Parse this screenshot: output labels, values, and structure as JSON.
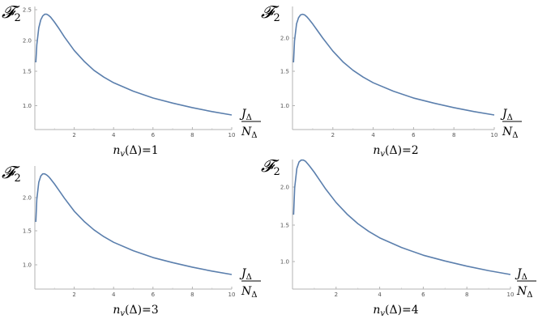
{
  "chart_data": [
    {
      "type": "line",
      "ylabel": "𝓕",
      "ylabel_sub": "2",
      "xlabel_num": "J",
      "xlabel_num_sub": "Δ",
      "xlabel_den": "N",
      "xlabel_den_sub": "Δ",
      "caption": "n",
      "caption_sub": "v",
      "caption_rest": "(Δ)=1",
      "xlim": [
        0,
        10
      ],
      "ylim": [
        0.6,
        2.5
      ],
      "xticks": [
        "2",
        "4",
        "6",
        "8",
        "10"
      ],
      "yticks": [
        "1.0",
        "1.5",
        "2.0",
        "2.5"
      ],
      "series": [
        {
          "x": [
            0.05,
            0.1,
            0.2,
            0.3,
            0.4,
            0.5,
            0.6,
            0.7,
            0.8,
            1.0,
            1.2,
            1.5,
            2.0,
            2.5,
            3.0,
            3.5,
            4.0,
            5.0,
            6.0,
            7.0,
            8.0,
            9.0,
            10.0
          ],
          "y": [
            1.57,
            1.88,
            2.18,
            2.32,
            2.39,
            2.42,
            2.42,
            2.4,
            2.37,
            2.28,
            2.18,
            2.02,
            1.78,
            1.59,
            1.43,
            1.31,
            1.21,
            1.06,
            0.94,
            0.85,
            0.77,
            0.7,
            0.64
          ],
          "color": "#5b7fad"
        }
      ]
    },
    {
      "type": "line",
      "ylabel": "𝓕",
      "ylabel_sub": "2",
      "xlabel_num": "J",
      "xlabel_num_sub": "Δ",
      "xlabel_den": "N",
      "xlabel_den_sub": "Δ",
      "caption": "n",
      "caption_sub": "v",
      "caption_rest": "(Δ)=2",
      "xlim": [
        0,
        10
      ],
      "ylim": [
        0.6,
        2.5
      ],
      "xticks": [
        "2",
        "4",
        "6",
        "8",
        "10"
      ],
      "yticks": [
        "1.0",
        "1.5",
        "2.0"
      ],
      "series": [
        {
          "x": [
            0.05,
            0.1,
            0.2,
            0.3,
            0.4,
            0.5,
            0.6,
            0.7,
            0.8,
            1.0,
            1.2,
            1.5,
            2.0,
            2.5,
            3.0,
            3.5,
            4.0,
            5.0,
            6.0,
            7.0,
            8.0,
            9.0,
            10.0
          ],
          "y": [
            1.57,
            1.95,
            2.25,
            2.36,
            2.41,
            2.42,
            2.41,
            2.38,
            2.34,
            2.25,
            2.15,
            2.0,
            1.77,
            1.58,
            1.43,
            1.31,
            1.21,
            1.06,
            0.94,
            0.85,
            0.77,
            0.7,
            0.64
          ],
          "color": "#5b7fad"
        }
      ]
    },
    {
      "type": "line",
      "ylabel": "𝓕",
      "ylabel_sub": "2",
      "xlabel_num": "J",
      "xlabel_num_sub": "Δ",
      "xlabel_den": "N",
      "xlabel_den_sub": "Δ",
      "caption": "n",
      "caption_sub": "v",
      "caption_rest": "(Δ)=3",
      "xlim": [
        0,
        10
      ],
      "ylim": [
        0.6,
        2.5
      ],
      "xticks": [
        "2",
        "4",
        "6",
        "8",
        "10"
      ],
      "yticks": [
        "1.0",
        "1.5",
        "2.0"
      ],
      "series": [
        {
          "x": [
            0.05,
            0.1,
            0.2,
            0.3,
            0.4,
            0.5,
            0.6,
            0.7,
            0.8,
            1.0,
            1.2,
            1.5,
            2.0,
            2.5,
            3.0,
            3.5,
            4.0,
            5.0,
            6.0,
            7.0,
            8.0,
            9.0,
            10.0
          ],
          "y": [
            1.57,
            1.97,
            2.27,
            2.38,
            2.42,
            2.42,
            2.4,
            2.37,
            2.33,
            2.24,
            2.14,
            1.99,
            1.76,
            1.58,
            1.43,
            1.31,
            1.21,
            1.06,
            0.94,
            0.85,
            0.77,
            0.7,
            0.64
          ],
          "color": "#5b7fad"
        }
      ]
    },
    {
      "type": "line",
      "ylabel": "𝓕",
      "ylabel_sub": "2",
      "xlabel_num": "J",
      "xlabel_num_sub": "Δ",
      "xlabel_den": "N",
      "xlabel_den_sub": "Δ",
      "caption": "n",
      "caption_sub": "v",
      "caption_rest": "(Δ)=4",
      "xlim": [
        0,
        10
      ],
      "ylim": [
        0.6,
        2.5
      ],
      "xticks": [
        "2",
        "4",
        "6",
        "8",
        "10"
      ],
      "yticks": [
        "1.0",
        "1.5",
        "2.0"
      ],
      "series": [
        {
          "x": [
            0.05,
            0.1,
            0.2,
            0.3,
            0.4,
            0.5,
            0.6,
            0.7,
            0.8,
            1.0,
            1.2,
            1.5,
            2.0,
            2.5,
            3.0,
            3.5,
            4.0,
            5.0,
            6.0,
            7.0,
            8.0,
            9.0,
            10.0
          ],
          "y": [
            1.57,
            1.99,
            2.29,
            2.39,
            2.42,
            2.42,
            2.4,
            2.36,
            2.32,
            2.23,
            2.13,
            1.98,
            1.76,
            1.58,
            1.43,
            1.31,
            1.21,
            1.06,
            0.94,
            0.85,
            0.77,
            0.7,
            0.64
          ],
          "color": "#5b7fad"
        }
      ]
    }
  ]
}
